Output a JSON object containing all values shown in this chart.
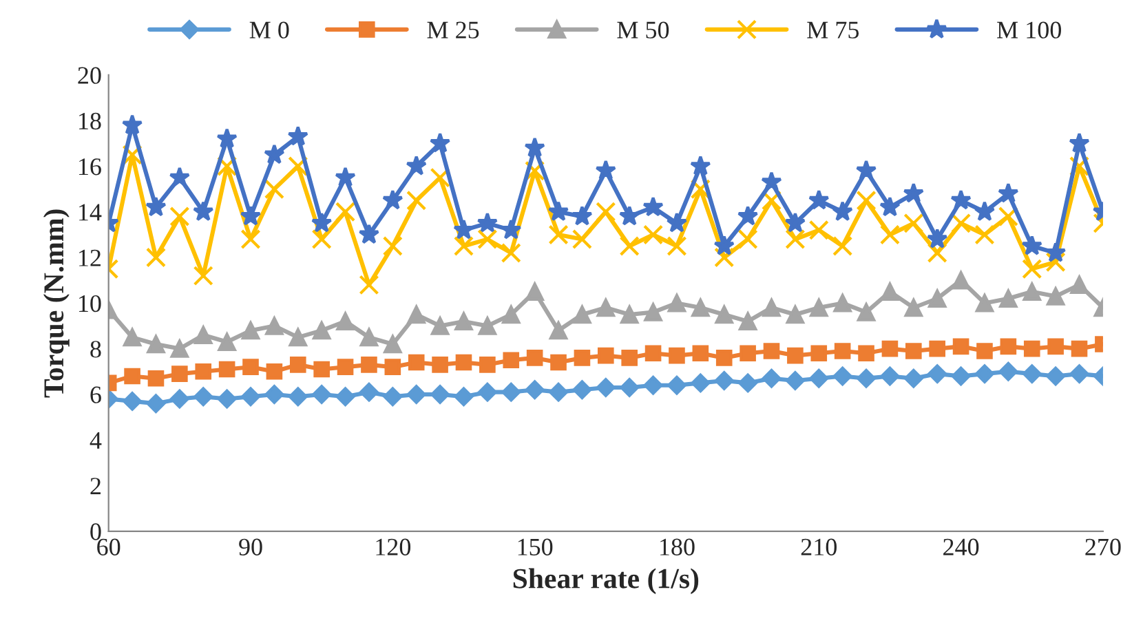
{
  "chart_data": {
    "type": "line",
    "xlabel": "Shear rate (1/s)",
    "ylabel": "Torque (N.mm)",
    "x": [
      60,
      65,
      70,
      75,
      80,
      85,
      90,
      95,
      100,
      105,
      110,
      115,
      120,
      125,
      130,
      135,
      140,
      145,
      150,
      155,
      160,
      165,
      170,
      175,
      180,
      185,
      190,
      195,
      200,
      205,
      210,
      215,
      220,
      225,
      230,
      235,
      240,
      245,
      250,
      255,
      260,
      265,
      270
    ],
    "series": [
      {
        "name": "M 0",
        "color": "#5b9bd5",
        "marker": "diamond",
        "values": [
          5.8,
          5.7,
          5.6,
          5.8,
          5.9,
          5.8,
          5.9,
          6.0,
          5.9,
          6.0,
          5.9,
          6.1,
          5.9,
          6.0,
          6.0,
          5.9,
          6.1,
          6.1,
          6.2,
          6.1,
          6.2,
          6.3,
          6.3,
          6.4,
          6.4,
          6.5,
          6.6,
          6.5,
          6.7,
          6.6,
          6.7,
          6.8,
          6.7,
          6.8,
          6.7,
          6.9,
          6.8,
          6.9,
          7.0,
          6.9,
          6.8,
          6.9,
          6.8
        ]
      },
      {
        "name": "M 25",
        "color": "#ed7d31",
        "marker": "square",
        "values": [
          6.5,
          6.8,
          6.7,
          6.9,
          7.0,
          7.1,
          7.2,
          7.0,
          7.3,
          7.1,
          7.2,
          7.3,
          7.2,
          7.4,
          7.3,
          7.4,
          7.3,
          7.5,
          7.6,
          7.4,
          7.6,
          7.7,
          7.6,
          7.8,
          7.7,
          7.8,
          7.6,
          7.8,
          7.9,
          7.7,
          7.8,
          7.9,
          7.8,
          8.0,
          7.9,
          8.0,
          8.1,
          7.9,
          8.1,
          8.0,
          8.1,
          8.0,
          8.2
        ]
      },
      {
        "name": "M 50",
        "color": "#a5a5a5",
        "marker": "triangle",
        "values": [
          9.7,
          8.5,
          8.2,
          8.0,
          8.6,
          8.3,
          8.8,
          9.0,
          8.5,
          8.8,
          9.2,
          8.5,
          8.2,
          9.5,
          9.0,
          9.2,
          9.0,
          9.5,
          10.5,
          8.8,
          9.5,
          9.8,
          9.5,
          9.6,
          10.0,
          9.8,
          9.5,
          9.2,
          9.8,
          9.5,
          9.8,
          10.0,
          9.6,
          10.5,
          9.8,
          10.2,
          11.0,
          10.0,
          10.2,
          10.5,
          10.3,
          10.8,
          9.8
        ]
      },
      {
        "name": "M 75",
        "color": "#ffc000",
        "marker": "cross",
        "values": [
          11.5,
          16.5,
          12.0,
          13.8,
          11.2,
          16.0,
          12.8,
          15.0,
          16.0,
          12.8,
          14.0,
          10.8,
          12.5,
          14.5,
          15.5,
          12.5,
          12.8,
          12.2,
          15.8,
          13.0,
          12.8,
          14.0,
          12.5,
          13.0,
          12.5,
          15.0,
          12.0,
          12.8,
          14.5,
          12.8,
          13.2,
          12.5,
          14.5,
          13.0,
          13.5,
          12.2,
          13.5,
          13.0,
          13.8,
          11.5,
          11.8,
          16.0,
          13.5
        ]
      },
      {
        "name": "M 100",
        "color": "#4472c4",
        "marker": "star",
        "values": [
          13.5,
          17.8,
          14.2,
          15.5,
          14.0,
          17.2,
          13.8,
          16.5,
          17.3,
          13.5,
          15.5,
          13.0,
          14.5,
          16.0,
          17.0,
          13.2,
          13.5,
          13.2,
          16.8,
          14.0,
          13.8,
          15.8,
          13.8,
          14.2,
          13.5,
          16.0,
          12.5,
          13.8,
          15.3,
          13.5,
          14.5,
          14.0,
          15.8,
          14.2,
          14.8,
          12.8,
          14.5,
          14.0,
          14.8,
          12.5,
          12.2,
          17.0,
          14.0
        ]
      }
    ],
    "xlim": [
      60,
      270
    ],
    "xticks": [
      60,
      90,
      120,
      150,
      180,
      210,
      240,
      270
    ],
    "ylim": [
      0,
      20
    ],
    "yticks": [
      0,
      2,
      4,
      6,
      8,
      10,
      12,
      14,
      16,
      18,
      20
    ],
    "grid": false,
    "legend": "top",
    "line_style": "solid"
  }
}
